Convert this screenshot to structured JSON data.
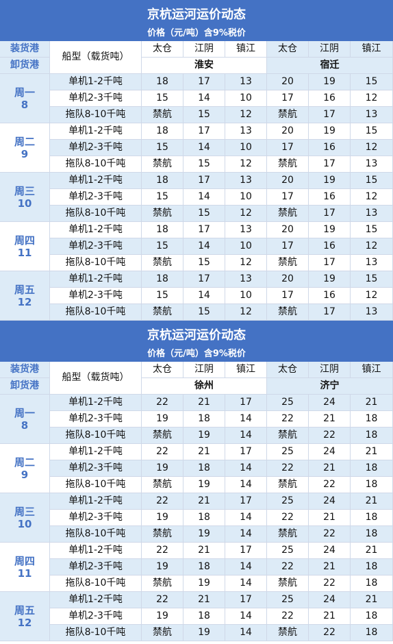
{
  "tables": [
    {
      "title": "京杭运河运价动态",
      "subtitle": "价格（元/吨）含9%税价",
      "header": {
        "load_label": "装货港",
        "unload_label": "卸货港",
        "ship_label": "船型（载货吨）",
        "load_ports": [
          "太仓",
          "江阴",
          "镇江",
          "太仓",
          "江阴",
          "镇江"
        ],
        "unload_ports": [
          "淮安",
          "宿迁"
        ]
      },
      "days": [
        {
          "name": "周一",
          "number": 8,
          "rows": [
            {
              "ship": "单机1-2千吨",
              "prices": [
                18,
                17,
                13,
                20,
                19,
                15
              ]
            },
            {
              "ship": "单机2-3千吨",
              "prices": [
                15,
                14,
                10,
                17,
                16,
                12
              ]
            },
            {
              "ship": "拖队8-10千吨",
              "prices": [
                "禁航",
                15,
                12,
                "禁航",
                17,
                13
              ]
            }
          ]
        },
        {
          "name": "周二",
          "number": 9,
          "rows": [
            {
              "ship": "单机1-2千吨",
              "prices": [
                18,
                17,
                13,
                20,
                19,
                15
              ]
            },
            {
              "ship": "单机2-3千吨",
              "prices": [
                15,
                14,
                10,
                17,
                16,
                12
              ]
            },
            {
              "ship": "拖队8-10千吨",
              "prices": [
                "禁航",
                15,
                12,
                "禁航",
                17,
                13
              ]
            }
          ]
        },
        {
          "name": "周三",
          "number": 10,
          "rows": [
            {
              "ship": "单机1-2千吨",
              "prices": [
                18,
                17,
                13,
                20,
                19,
                15
              ]
            },
            {
              "ship": "单机2-3千吨",
              "prices": [
                15,
                14,
                10,
                17,
                16,
                12
              ]
            },
            {
              "ship": "拖队8-10千吨",
              "prices": [
                "禁航",
                15,
                12,
                "禁航",
                17,
                13
              ]
            }
          ]
        },
        {
          "name": "周四",
          "number": 11,
          "rows": [
            {
              "ship": "单机1-2千吨",
              "prices": [
                18,
                17,
                13,
                20,
                19,
                15
              ]
            },
            {
              "ship": "单机2-3千吨",
              "prices": [
                15,
                14,
                10,
                17,
                16,
                12
              ]
            },
            {
              "ship": "拖队8-10千吨",
              "prices": [
                "禁航",
                15,
                12,
                "禁航",
                17,
                13
              ]
            }
          ]
        },
        {
          "name": "周五",
          "number": 12,
          "rows": [
            {
              "ship": "单机1-2千吨",
              "prices": [
                18,
                17,
                13,
                20,
                19,
                15
              ]
            },
            {
              "ship": "单机2-3千吨",
              "prices": [
                15,
                14,
                10,
                17,
                16,
                12
              ]
            },
            {
              "ship": "拖队8-10千吨",
              "prices": [
                "禁航",
                15,
                12,
                "禁航",
                17,
                13
              ]
            }
          ]
        }
      ]
    },
    {
      "title": "京杭运河运价动态",
      "subtitle": "价格（元/吨）含9%税价",
      "header": {
        "load_label": "装货港",
        "unload_label": "卸货港",
        "ship_label": "船型（载货吨）",
        "load_ports": [
          "太仓",
          "江阴",
          "镇江",
          "太仓",
          "江阴",
          "镇江"
        ],
        "unload_ports": [
          "徐州",
          "济宁"
        ]
      },
      "days": [
        {
          "name": "周一",
          "number": 8,
          "rows": [
            {
              "ship": "单机1-2千吨",
              "prices": [
                22,
                21,
                17,
                25,
                24,
                21
              ]
            },
            {
              "ship": "单机2-3千吨",
              "prices": [
                19,
                18,
                14,
                22,
                21,
                18
              ]
            },
            {
              "ship": "拖队8-10千吨",
              "prices": [
                "禁航",
                19,
                14,
                "禁航",
                22,
                18
              ]
            }
          ]
        },
        {
          "name": "周二",
          "number": 9,
          "rows": [
            {
              "ship": "单机1-2千吨",
              "prices": [
                22,
                21,
                17,
                25,
                24,
                21
              ]
            },
            {
              "ship": "单机2-3千吨",
              "prices": [
                19,
                18,
                14,
                22,
                21,
                18
              ]
            },
            {
              "ship": "拖队8-10千吨",
              "prices": [
                "禁航",
                19,
                14,
                "禁航",
                22,
                18
              ]
            }
          ]
        },
        {
          "name": "周三",
          "number": 10,
          "rows": [
            {
              "ship": "单机1-2千吨",
              "prices": [
                22,
                21,
                17,
                25,
                24,
                21
              ]
            },
            {
              "ship": "单机2-3千吨",
              "prices": [
                19,
                18,
                14,
                22,
                21,
                18
              ]
            },
            {
              "ship": "拖队8-10千吨",
              "prices": [
                "禁航",
                19,
                14,
                "禁航",
                22,
                18
              ]
            }
          ]
        },
        {
          "name": "周四",
          "number": 11,
          "rows": [
            {
              "ship": "单机1-2千吨",
              "prices": [
                22,
                21,
                17,
                25,
                24,
                21
              ]
            },
            {
              "ship": "单机2-3千吨",
              "prices": [
                19,
                18,
                14,
                22,
                21,
                18
              ]
            },
            {
              "ship": "拖队8-10千吨",
              "prices": [
                "禁航",
                19,
                14,
                "禁航",
                22,
                18
              ]
            }
          ]
        },
        {
          "name": "周五",
          "number": 12,
          "rows": [
            {
              "ship": "单机1-2千吨",
              "prices": [
                22,
                21,
                17,
                25,
                24,
                21
              ]
            },
            {
              "ship": "单机2-3千吨",
              "prices": [
                19,
                18,
                14,
                22,
                21,
                18
              ]
            },
            {
              "ship": "拖队8-10千吨",
              "prices": [
                "禁航",
                19,
                14,
                "禁航",
                22,
                18
              ]
            }
          ]
        }
      ]
    }
  ]
}
